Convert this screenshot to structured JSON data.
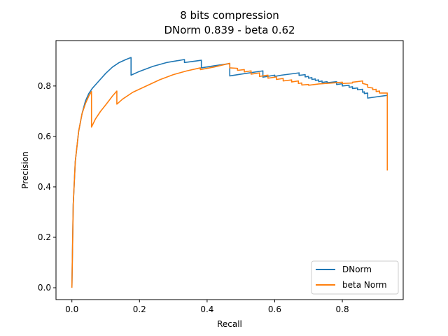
{
  "chart_data": {
    "type": "line",
    "title": "8 bits compression",
    "subtitle": "DNorm 0.839 - beta 0.62",
    "xlabel": "Recall",
    "ylabel": "Precision",
    "xlim": [
      -0.047,
      0.98
    ],
    "ylim": [
      -0.047,
      0.98
    ],
    "xticks": [
      "0.0",
      "0.2",
      "0.4",
      "0.6",
      "0.8"
    ],
    "yticks": [
      "0.0",
      "0.2",
      "0.4",
      "0.6",
      "0.8"
    ],
    "grid": false,
    "legend_position": "lower-right",
    "series": [
      {
        "name": "DNorm",
        "color": "#1f77b4",
        "points": [
          [
            0.0,
            0.0
          ],
          [
            0.004,
            0.33
          ],
          [
            0.01,
            0.5
          ],
          [
            0.02,
            0.62
          ],
          [
            0.03,
            0.69
          ],
          [
            0.04,
            0.74
          ],
          [
            0.05,
            0.77
          ],
          [
            0.06,
            0.79
          ],
          [
            0.08,
            0.82
          ],
          [
            0.1,
            0.85
          ],
          [
            0.12,
            0.875
          ],
          [
            0.14,
            0.893
          ],
          [
            0.16,
            0.905
          ],
          [
            0.175,
            0.913
          ],
          [
            0.175,
            0.843
          ],
          [
            0.2,
            0.858
          ],
          [
            0.24,
            0.878
          ],
          [
            0.28,
            0.893
          ],
          [
            0.333,
            0.905
          ],
          [
            0.333,
            0.893
          ],
          [
            0.355,
            0.897
          ],
          [
            0.383,
            0.902
          ],
          [
            0.383,
            0.872
          ],
          [
            0.42,
            0.88
          ],
          [
            0.467,
            0.889
          ],
          [
            0.467,
            0.84
          ],
          [
            0.5,
            0.847
          ],
          [
            0.565,
            0.86
          ],
          [
            0.565,
            0.835
          ],
          [
            0.6,
            0.843
          ],
          [
            0.6,
            0.838
          ],
          [
            0.62,
            0.843
          ],
          [
            0.672,
            0.852
          ],
          [
            0.672,
            0.842
          ],
          [
            0.69,
            0.845
          ],
          [
            0.69,
            0.836
          ],
          [
            0.7,
            0.838
          ],
          [
            0.7,
            0.831
          ],
          [
            0.71,
            0.833
          ],
          [
            0.71,
            0.826
          ],
          [
            0.72,
            0.828
          ],
          [
            0.72,
            0.822
          ],
          [
            0.73,
            0.824
          ],
          [
            0.73,
            0.817
          ],
          [
            0.74,
            0.82
          ],
          [
            0.74,
            0.814
          ],
          [
            0.755,
            0.817
          ],
          [
            0.755,
            0.813
          ],
          [
            0.783,
            0.817
          ],
          [
            0.783,
            0.806
          ],
          [
            0.8,
            0.809
          ],
          [
            0.8,
            0.8
          ],
          [
            0.82,
            0.803
          ],
          [
            0.82,
            0.795
          ],
          [
            0.83,
            0.797
          ],
          [
            0.83,
            0.79
          ],
          [
            0.845,
            0.792
          ],
          [
            0.845,
            0.785
          ],
          [
            0.86,
            0.787
          ],
          [
            0.86,
            0.775
          ],
          [
            0.865,
            0.777
          ],
          [
            0.865,
            0.77
          ],
          [
            0.875,
            0.772
          ],
          [
            0.875,
            0.752
          ],
          [
            0.933,
            0.763
          ]
        ]
      },
      {
        "name": "beta Norm",
        "color": "#ff7f0e",
        "points": [
          [
            0.0,
            0.0
          ],
          [
            0.004,
            0.33
          ],
          [
            0.01,
            0.5
          ],
          [
            0.02,
            0.62
          ],
          [
            0.03,
            0.69
          ],
          [
            0.04,
            0.73
          ],
          [
            0.05,
            0.76
          ],
          [
            0.058,
            0.778
          ],
          [
            0.058,
            0.637
          ],
          [
            0.07,
            0.67
          ],
          [
            0.085,
            0.7
          ],
          [
            0.1,
            0.725
          ],
          [
            0.12,
            0.76
          ],
          [
            0.133,
            0.78
          ],
          [
            0.133,
            0.728
          ],
          [
            0.15,
            0.748
          ],
          [
            0.18,
            0.775
          ],
          [
            0.22,
            0.8
          ],
          [
            0.26,
            0.825
          ],
          [
            0.3,
            0.845
          ],
          [
            0.34,
            0.86
          ],
          [
            0.38,
            0.872
          ],
          [
            0.38,
            0.865
          ],
          [
            0.42,
            0.875
          ],
          [
            0.467,
            0.89
          ],
          [
            0.467,
            0.872
          ],
          [
            0.49,
            0.87
          ],
          [
            0.49,
            0.862
          ],
          [
            0.51,
            0.865
          ],
          [
            0.51,
            0.856
          ],
          [
            0.53,
            0.86
          ],
          [
            0.53,
            0.847
          ],
          [
            0.555,
            0.852
          ],
          [
            0.555,
            0.838
          ],
          [
            0.58,
            0.843
          ],
          [
            0.58,
            0.831
          ],
          [
            0.605,
            0.836
          ],
          [
            0.605,
            0.826
          ],
          [
            0.625,
            0.83
          ],
          [
            0.625,
            0.82
          ],
          [
            0.65,
            0.824
          ],
          [
            0.65,
            0.816
          ],
          [
            0.67,
            0.82
          ],
          [
            0.67,
            0.81
          ],
          [
            0.68,
            0.812
          ],
          [
            0.68,
            0.804
          ],
          [
            0.7,
            0.806
          ],
          [
            0.7,
            0.803
          ],
          [
            0.73,
            0.808
          ],
          [
            0.77,
            0.812
          ],
          [
            0.8,
            0.815
          ],
          [
            0.8,
            0.81
          ],
          [
            0.83,
            0.812
          ],
          [
            0.83,
            0.815
          ],
          [
            0.86,
            0.82
          ],
          [
            0.86,
            0.81
          ],
          [
            0.875,
            0.805
          ],
          [
            0.875,
            0.795
          ],
          [
            0.89,
            0.792
          ],
          [
            0.89,
            0.785
          ],
          [
            0.9,
            0.787
          ],
          [
            0.9,
            0.778
          ],
          [
            0.91,
            0.78
          ],
          [
            0.91,
            0.772
          ],
          [
            0.933,
            0.772
          ],
          [
            0.933,
            0.465
          ]
        ]
      }
    ]
  }
}
